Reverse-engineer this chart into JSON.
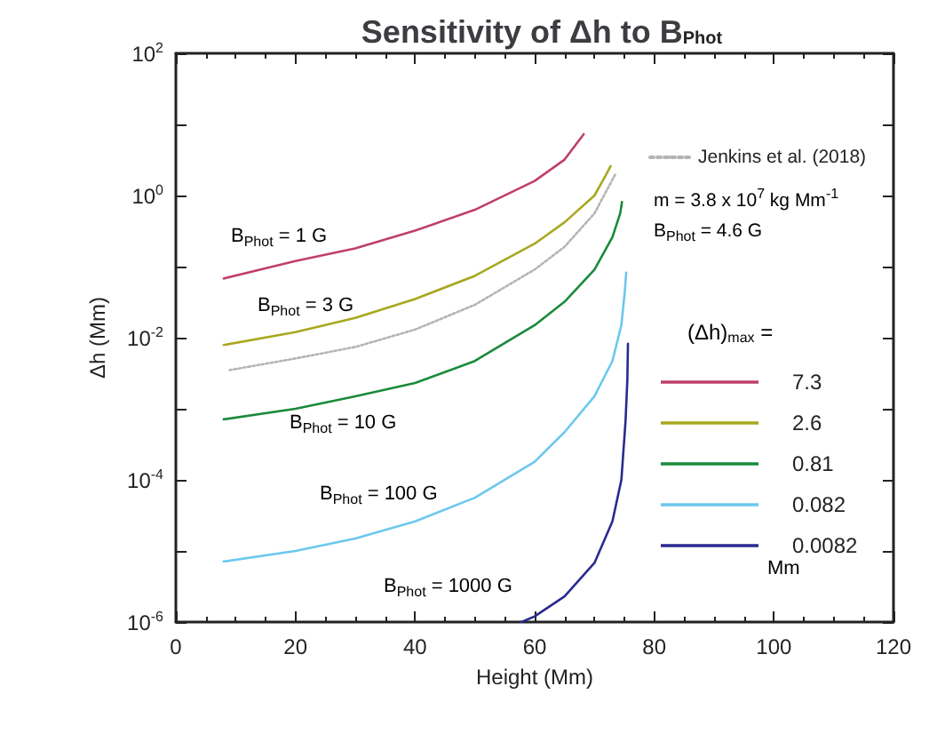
{
  "chart_data": {
    "type": "line",
    "title": "Sensitivity of Δh to B$_{Phot}$",
    "xlabel": "Height (Mm)",
    "ylabel": "Δh (Mm)",
    "legend_title": "(Δh)$_{max}$ =",
    "log": "y",
    "grid": false,
    "legend": "right",
    "marker": "none",
    "line_style": "solid",
    "xlim": [
      0,
      120
    ],
    "xticks": [
      0,
      20,
      40,
      60,
      80,
      100,
      120
    ],
    "ylim": [
      1e-06,
      100
    ],
    "yticks": [
      {
        "value": 1e-06,
        "label": "10$^{-6}$"
      },
      {
        "value": 1e-05,
        "label": null
      },
      {
        "value": 0.0001,
        "label": "10$^{-4}$"
      },
      {
        "value": 0.001,
        "label": null
      },
      {
        "value": 0.01,
        "label": "10$^{-2}$"
      },
      {
        "value": 0.1,
        "label": null
      },
      {
        "value": 1,
        "label": "10$^{0}$"
      },
      {
        "value": 10,
        "label": null
      },
      {
        "value": 100,
        "label": "10$^{2}$"
      }
    ],
    "series": [
      {
        "name": "7.3",
        "color": "#c0406a",
        "x": [
          8,
          20,
          30,
          40,
          50,
          60,
          65,
          68.2
        ],
        "values": [
          0.068,
          0.12,
          0.18,
          0.32,
          0.63,
          1.6,
          3.2,
          7.3
        ]
      },
      {
        "name": "2.6",
        "color": "#a8a820",
        "x": [
          8,
          20,
          30,
          40,
          50,
          60,
          65,
          70,
          72,
          72.7
        ],
        "values": [
          0.0079,
          0.012,
          0.019,
          0.035,
          0.074,
          0.21,
          0.42,
          1.0,
          2.0,
          2.6
        ]
      },
      {
        "name": "Jenkins et al. (2018)",
        "color": "#b4b4b4",
        "line_style": "dotted",
        "x": [
          9,
          20,
          30,
          40,
          50,
          60,
          65,
          70,
          73.5
        ],
        "values": [
          0.0035,
          0.0051,
          0.0074,
          0.013,
          0.029,
          0.091,
          0.19,
          0.56,
          2.0
        ]
      },
      {
        "name": "0.81",
        "color": "#1a8a3a",
        "x": [
          8,
          20,
          30,
          40,
          50,
          60,
          65,
          70,
          73,
          74.3,
          74.6
        ],
        "values": [
          0.00071,
          0.001,
          0.0015,
          0.0023,
          0.0047,
          0.015,
          0.032,
          0.091,
          0.26,
          0.56,
          0.81
        ]
      },
      {
        "name": "0.082",
        "color": "#6cc8ee",
        "x": [
          8,
          20,
          30,
          40,
          50,
          60,
          65,
          70,
          73,
          74.5,
          75.1,
          75.3
        ],
        "values": [
          7.1e-06,
          1e-05,
          1.5e-05,
          2.6e-05,
          5.6e-05,
          0.00018,
          0.00047,
          0.0015,
          0.0047,
          0.015,
          0.047,
          0.082
        ]
      },
      {
        "name": "0.0082",
        "color": "#2a2a90",
        "x": [
          57.8,
          60,
          65,
          70,
          73,
          74.5,
          75.2,
          75.5,
          75.6
        ],
        "values": [
          1e-06,
          1.2e-06,
          2.3e-06,
          6.8e-06,
          2.6e-05,
          0.0001,
          0.00068,
          0.0026,
          0.0082
        ]
      }
    ],
    "annotations": [
      "B$_{Phot}$ = 1 G",
      "B$_{Phot}$ = 3 G",
      "B$_{Phot}$ = 10 G",
      "B$_{Phot}$ = 100 G",
      "B$_{Phot}$ = 1000 G",
      "m = 3.8 x 10$^{7}$ kg Mm$^{-1}$",
      "B$_{Phot}$ = 4.6 G",
      "Mm"
    ]
  }
}
